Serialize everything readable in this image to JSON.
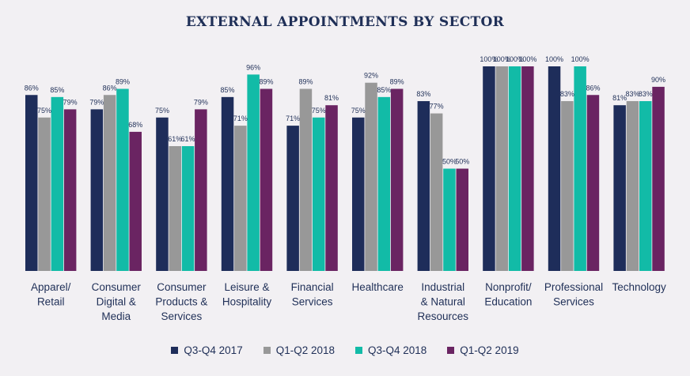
{
  "chart_data": {
    "type": "bar",
    "title": "EXTERNAL APPOINTMENTS BY SECTOR",
    "xlabel": "",
    "ylabel": "",
    "ylim": [
      0,
      100
    ],
    "grid": false,
    "legend_position": "bottom",
    "value_suffix": "%",
    "categories": [
      [
        "Apparel/",
        "Retail"
      ],
      [
        "Consumer",
        "Digital &",
        "Media"
      ],
      [
        "Consumer",
        "Products &",
        "Services"
      ],
      [
        "Leisure &",
        "Hospitality"
      ],
      [
        "Financial",
        "Services"
      ],
      [
        "Healthcare"
      ],
      [
        "Industrial",
        "& Natural",
        "Resources"
      ],
      [
        "Nonprofit/",
        "Education"
      ],
      [
        "Professional",
        "Services"
      ],
      [
        "Technology"
      ]
    ],
    "series": [
      {
        "name": "Q3-Q4 2017",
        "color": "#1e2d5a",
        "values": [
          86,
          79,
          75,
          85,
          71,
          75,
          83,
          100,
          100,
          81
        ]
      },
      {
        "name": "Q1-Q2 2018",
        "color": "#989898",
        "values": [
          75,
          86,
          61,
          71,
          89,
          92,
          77,
          100,
          83,
          83
        ]
      },
      {
        "name": "Q3-Q4 2018",
        "color": "#12bba7",
        "values": [
          85,
          89,
          61,
          96,
          75,
          85,
          50,
          100,
          100,
          83
        ]
      },
      {
        "name": "Q1-Q2 2019",
        "color": "#6a2462",
        "values": [
          79,
          68,
          79,
          89,
          81,
          89,
          50,
          100,
          86,
          90
        ]
      }
    ]
  }
}
